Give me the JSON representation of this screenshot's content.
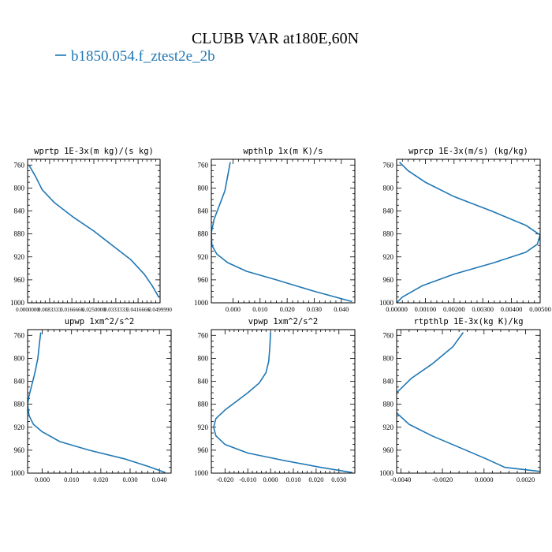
{
  "figure": {
    "title": "CLUBB VAR at180E,60N",
    "legend": [
      {
        "name": "b1850.054.f_ztest2e_2b",
        "color": "#1f77b4"
      }
    ]
  },
  "chart_data": [
    {
      "type": "line",
      "title": "wprtp   1E-3x(m kg)/(s kg)",
      "xlim": [
        0.0,
        0.05
      ],
      "ylim": [
        1000,
        750
      ],
      "y_ticks": [
        760,
        800,
        840,
        880,
        920,
        960,
        1000
      ],
      "x_tick_labels": [
        {
          "x": 0.0,
          "label": "0.0000000"
        },
        {
          "x": 0.0083,
          "label": "0.0083333"
        },
        {
          "x": 0.0167,
          "label": "0.0166666"
        },
        {
          "x": 0.025,
          "label": "0.0250000"
        },
        {
          "x": 0.0333,
          "label": "0.0333333"
        },
        {
          "x": 0.0417,
          "label": "0.0416666"
        },
        {
          "x": 0.05,
          "label": "0.0499990"
        }
      ],
      "x_tick_style": "tiny",
      "series": [
        {
          "color": "#1f77b4",
          "x": [
            0.0005,
            0.003,
            0.0055,
            0.01,
            0.017,
            0.025,
            0.032,
            0.039,
            0.044,
            0.047,
            0.0495
          ],
          "y": [
            760,
            780,
            803,
            825,
            850,
            875,
            900,
            925,
            950,
            970,
            990
          ]
        }
      ]
    },
    {
      "type": "line",
      "title": "wpthlp   1x(m K)/s",
      "xlim": [
        -0.008,
        0.045
      ],
      "ylim": [
        1000,
        750
      ],
      "y_ticks": [
        760,
        800,
        840,
        880,
        920,
        960,
        1000
      ],
      "x_tick_labels": [
        {
          "x": 0.0,
          "label": "0.000"
        },
        {
          "x": 0.01,
          "label": "0.010"
        },
        {
          "x": 0.02,
          "label": "0.020"
        },
        {
          "x": 0.03,
          "label": "0.030"
        },
        {
          "x": 0.04,
          "label": "0.040"
        }
      ],
      "series": [
        {
          "color": "#1f77b4",
          "x": [
            -0.001,
            -0.002,
            -0.003,
            -0.005,
            -0.007,
            -0.008,
            -0.0078,
            -0.006,
            -0.002,
            0.005,
            0.016,
            0.03,
            0.044
          ],
          "y": [
            755,
            780,
            805,
            830,
            855,
            878,
            900,
            915,
            930,
            945,
            960,
            980,
            998
          ]
        }
      ]
    },
    {
      "type": "line",
      "title": "wprcp   1E-3x(m/s) (kg/kg)",
      "xlim": [
        0.0,
        0.005
      ],
      "ylim": [
        1000,
        750
      ],
      "y_ticks": [
        760,
        800,
        840,
        880,
        920,
        960,
        1000
      ],
      "x_tick_labels": [
        {
          "x": 0.0,
          "label": "0.00000"
        },
        {
          "x": 0.001,
          "label": "0.00100"
        },
        {
          "x": 0.002,
          "label": "0.00200"
        },
        {
          "x": 0.003,
          "label": "0.00300"
        },
        {
          "x": 0.004,
          "label": "0.00400"
        },
        {
          "x": 0.005,
          "label": "0.00500"
        }
      ],
      "series": [
        {
          "color": "#1f77b4",
          "x": [
            0.0001,
            0.0004,
            0.001,
            0.002,
            0.0033,
            0.0045,
            0.005,
            0.0049,
            0.0045,
            0.0034,
            0.002,
            0.0009,
            0.0002,
            0.0
          ],
          "y": [
            755,
            770,
            790,
            815,
            840,
            865,
            882,
            898,
            912,
            930,
            950,
            970,
            990,
            1000
          ]
        }
      ]
    },
    {
      "type": "line",
      "title": "upwp   1xm^2/s^2",
      "xlim": [
        -0.005,
        0.044
      ],
      "ylim": [
        1000,
        750
      ],
      "y_ticks": [
        760,
        800,
        840,
        880,
        920,
        960,
        1000
      ],
      "x_tick_labels": [
        {
          "x": 0.0,
          "label": "0.000"
        },
        {
          "x": 0.01,
          "label": "0.010"
        },
        {
          "x": 0.02,
          "label": "0.020"
        },
        {
          "x": 0.03,
          "label": "0.030"
        },
        {
          "x": 0.04,
          "label": "0.040"
        }
      ],
      "series": [
        {
          "color": "#1f77b4",
          "x": [
            -0.0005,
            -0.001,
            -0.0015,
            -0.0025,
            -0.0035,
            -0.0045,
            -0.005,
            -0.0045,
            -0.003,
            0.0,
            0.006,
            0.016,
            0.028,
            0.036,
            0.042
          ],
          "y": [
            755,
            775,
            800,
            825,
            845,
            865,
            880,
            900,
            915,
            928,
            945,
            960,
            975,
            988,
            999
          ]
        }
      ]
    },
    {
      "type": "line",
      "title": "vpwp   1xm^2/s^2",
      "xlim": [
        -0.026,
        0.037
      ],
      "ylim": [
        1000,
        750
      ],
      "y_ticks": [
        760,
        800,
        840,
        880,
        920,
        960,
        1000
      ],
      "x_tick_labels": [
        {
          "x": -0.02,
          "label": "-0.020"
        },
        {
          "x": -0.01,
          "label": "-0.010"
        },
        {
          "x": 0.0,
          "label": "0.000"
        },
        {
          "x": 0.01,
          "label": "0.010"
        },
        {
          "x": 0.02,
          "label": "0.020"
        },
        {
          "x": 0.03,
          "label": "0.030"
        }
      ],
      "series": [
        {
          "color": "#1f77b4",
          "x": [
            0.0,
            -0.0003,
            -0.0008,
            -0.002,
            -0.005,
            -0.01,
            -0.015,
            -0.02,
            -0.024,
            -0.025,
            -0.024,
            -0.02,
            -0.01,
            0.006,
            0.022,
            0.036
          ],
          "y": [
            755,
            780,
            805,
            825,
            843,
            860,
            875,
            890,
            905,
            920,
            935,
            950,
            965,
            978,
            990,
            999
          ]
        }
      ]
    },
    {
      "type": "line",
      "title": "rtpthlp   1E-3x(kg K)/kg",
      "xlim": [
        -0.0042,
        0.0027
      ],
      "ylim": [
        1000,
        750
      ],
      "y_ticks": [
        760,
        800,
        840,
        880,
        920,
        960,
        1000
      ],
      "x_tick_labels": [
        {
          "x": -0.004,
          "label": "-0.0040"
        },
        {
          "x": -0.002,
          "label": "-0.0020"
        },
        {
          "x": 0.0,
          "label": "0.0000"
        },
        {
          "x": 0.002,
          "label": "0.0020"
        }
      ],
      "series": [
        {
          "color": "#1f77b4",
          "x": [
            -0.001,
            -0.0015,
            -0.0025,
            -0.0035,
            -0.0042,
            -0.0043,
            -0.0042,
            -0.0036,
            -0.0025,
            -0.0012,
            0.0001,
            0.001,
            0.0027
          ],
          "y": [
            755,
            780,
            810,
            835,
            860,
            878,
            895,
            915,
            935,
            955,
            975,
            990,
            997
          ]
        }
      ]
    }
  ]
}
